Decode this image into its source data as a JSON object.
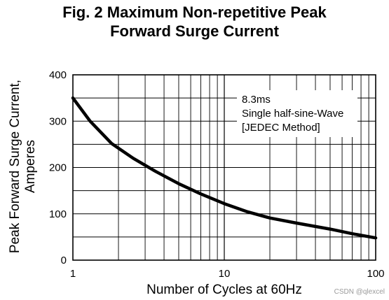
{
  "title": {
    "line1": "Fig. 2 Maximum Non-repetitive Peak",
    "line2": "Forward Surge Current"
  },
  "chart_data": {
    "type": "line",
    "title": "Fig. 2 Maximum Non-repetitive Peak Forward Surge Current",
    "xlabel": "Number of Cycles at 60Hz",
    "ylabel_lines": [
      "Peak Forward Surge Current,",
      "Amperes"
    ],
    "x_scale": "log",
    "xlim": [
      1,
      100
    ],
    "ylim": [
      0,
      400
    ],
    "x_ticks": [
      1,
      10,
      100
    ],
    "x_tick_labels": [
      "1",
      "10",
      "100"
    ],
    "y_ticks": [
      0,
      100,
      200,
      300,
      400
    ],
    "y_tick_labels": [
      "0",
      "100",
      "200",
      "300",
      "400"
    ],
    "grid": true,
    "annotation_lines": [
      "8.3ms",
      "Single half-sine-Wave",
      "[JEDEC Method]"
    ],
    "series": [
      {
        "x": [
          1,
          1.3,
          1.8,
          2.5,
          3.5,
          5,
          7,
          10,
          14,
          20,
          30,
          50,
          70,
          100
        ],
        "y": [
          350,
          300,
          252,
          220,
          192,
          165,
          143,
          122,
          105,
          91,
          80,
          67,
          57,
          48
        ]
      }
    ]
  },
  "watermark": "CSDN @qlexcel"
}
